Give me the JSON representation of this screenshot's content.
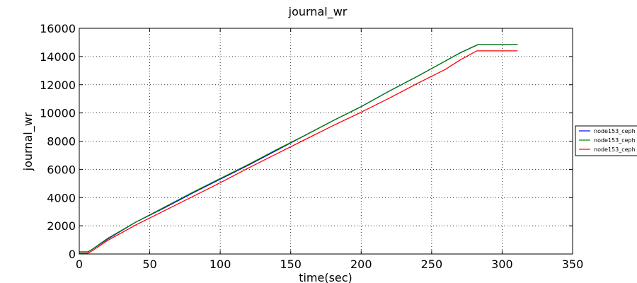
{
  "chart_data": {
    "type": "line",
    "title": "journal_wr",
    "xlabel": "time(sec)",
    "ylabel": "journal_wr",
    "xlim": [
      0,
      350
    ],
    "ylim": [
      0,
      16000
    ],
    "xticks": [
      "0",
      "50",
      "100",
      "150",
      "200",
      "250",
      "300",
      "350"
    ],
    "yticks": [
      "0",
      "2000",
      "4000",
      "6000",
      "8000",
      "10000",
      "12000",
      "14000",
      "16000"
    ],
    "grid": true,
    "legend_position": "right, outside plot",
    "series": [
      {
        "name": "node153_ceph",
        "color": "#0000ff",
        "x": [
          0,
          6,
          8,
          20,
          40,
          60,
          80,
          100,
          120,
          140,
          160,
          180,
          200,
          220,
          240,
          260,
          270,
          283,
          311
        ],
        "y": [
          150,
          150,
          250,
          1050,
          2250,
          3250,
          4300,
          5300,
          6300,
          7350,
          8400,
          9450,
          10450,
          11550,
          12600,
          13700,
          14250,
          14850,
          14850
        ]
      },
      {
        "name": "node153_ceph",
        "color": "#008000",
        "x": [
          0,
          6,
          8,
          20,
          40,
          60,
          80,
          100,
          120,
          140,
          160,
          180,
          200,
          220,
          240,
          260,
          270,
          283,
          311
        ],
        "y": [
          150,
          150,
          250,
          1100,
          2250,
          3300,
          4350,
          5350,
          6350,
          7400,
          8400,
          9450,
          10450,
          11550,
          12600,
          13700,
          14250,
          14850,
          14850
        ]
      },
      {
        "name": "node153_ceph",
        "color": "#ff0000",
        "x": [
          0,
          6,
          8,
          20,
          40,
          60,
          80,
          100,
          120,
          140,
          160,
          180,
          200,
          220,
          240,
          260,
          270,
          282,
          311
        ],
        "y": [
          50,
          50,
          150,
          950,
          2050,
          3050,
          4050,
          5050,
          6100,
          7100,
          8100,
          9100,
          10050,
          11050,
          12100,
          13100,
          13750,
          14400,
          14400
        ]
      }
    ]
  }
}
